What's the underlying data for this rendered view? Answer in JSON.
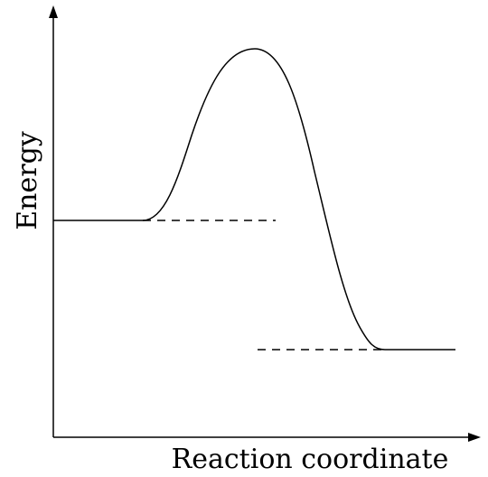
{
  "diagram": {
    "type": "reaction-energy-profile",
    "x_axis_label": "Reaction coordinate",
    "y_axis_label": "Energy",
    "levels": {
      "reactants": "high",
      "transition_state": "highest",
      "products": "low"
    },
    "colors": {
      "stroke": "#000000",
      "background": "#ffffff"
    }
  }
}
